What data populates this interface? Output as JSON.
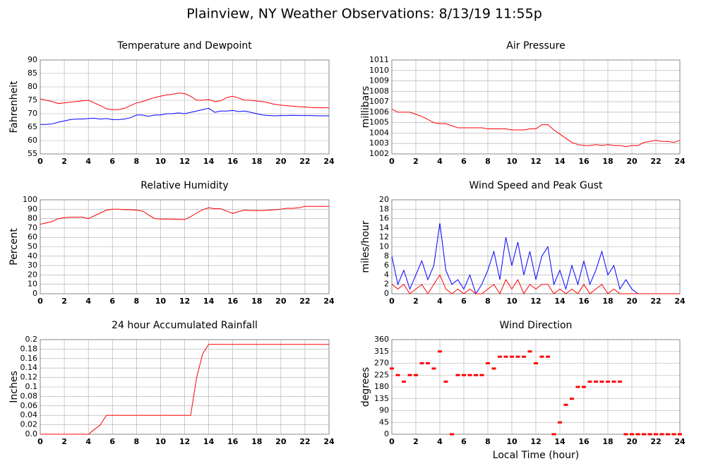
{
  "title": "Plainview, NY Weather Observations: 8/13/19 11:55p",
  "chart_data": [
    {
      "type": "line",
      "title": "Temperature and Dewpoint",
      "ylabel": "Fahrenheit",
      "x": [
        0,
        0.5,
        1,
        1.5,
        2,
        2.5,
        3,
        3.5,
        4,
        4.5,
        5,
        5.5,
        6,
        6.5,
        7,
        7.5,
        8,
        8.5,
        9,
        9.5,
        10,
        10.5,
        11,
        11.5,
        12,
        12.5,
        13,
        13.5,
        14,
        14.5,
        15,
        15.5,
        16,
        16.5,
        17,
        17.5,
        18,
        18.5,
        19,
        19.5,
        20,
        20.5,
        21,
        21.5,
        22,
        22.5,
        23,
        23.5,
        24
      ],
      "series": [
        {
          "color": "#ff0000",
          "values": [
            75.5,
            75,
            74.5,
            73.8,
            74,
            74.3,
            74.5,
            74.8,
            75,
            74,
            73,
            71.8,
            71.5,
            71.5,
            72,
            73,
            74,
            74.5,
            75.3,
            76,
            76.5,
            77,
            77.2,
            77.7,
            77.5,
            76.5,
            75,
            75,
            75.3,
            74.5,
            74.8,
            76,
            76.5,
            75.8,
            75,
            75,
            74.7,
            74.5,
            74,
            73.5,
            73.2,
            73,
            72.8,
            72.6,
            72.5,
            72.3,
            72.2,
            72.2,
            72.2
          ]
        },
        {
          "color": "#0000ff",
          "values": [
            66,
            66,
            66.2,
            66.8,
            67.3,
            67.8,
            68,
            68,
            68.2,
            68.3,
            68,
            68.2,
            67.8,
            67.8,
            68,
            68.5,
            69.5,
            69.5,
            69,
            69.5,
            69.5,
            70,
            70,
            70.3,
            70,
            70.5,
            71,
            71.5,
            72,
            70.5,
            71,
            71,
            71.2,
            70.8,
            71,
            70.5,
            70,
            69.5,
            69.3,
            69.2,
            69.3,
            69.3,
            69.4,
            69.3,
            69.3,
            69.3,
            69.2,
            69.2,
            69.2
          ]
        }
      ],
      "xlim": [
        0,
        24
      ],
      "xticks": [
        0,
        2,
        4,
        6,
        8,
        10,
        12,
        14,
        16,
        18,
        20,
        22,
        24
      ],
      "ylim": [
        55,
        90
      ],
      "yticks": [
        55,
        60,
        65,
        70,
        75,
        80,
        85,
        90
      ],
      "grid": true
    },
    {
      "type": "line",
      "title": "Air Pressure",
      "ylabel": "millibars",
      "x": [
        0,
        0.5,
        1,
        1.5,
        2,
        2.5,
        3,
        3.5,
        4,
        4.5,
        5,
        5.5,
        6,
        6.5,
        7,
        7.5,
        8,
        8.5,
        9,
        9.5,
        10,
        10.5,
        11,
        11.5,
        12,
        12.5,
        13,
        13.5,
        14,
        14.5,
        15,
        15.5,
        16,
        16.5,
        17,
        17.5,
        18,
        18.5,
        19,
        19.5,
        20,
        20.5,
        21,
        21.5,
        22,
        22.5,
        23,
        23.5,
        24
      ],
      "series": [
        {
          "color": "#ff0000",
          "values": [
            1006.3,
            1006,
            1006,
            1006,
            1005.8,
            1005.6,
            1005.3,
            1005,
            1004.9,
            1004.9,
            1004.7,
            1004.5,
            1004.5,
            1004.5,
            1004.5,
            1004.5,
            1004.4,
            1004.4,
            1004.4,
            1004.4,
            1004.3,
            1004.3,
            1004.3,
            1004.4,
            1004.4,
            1004.8,
            1004.8,
            1004.3,
            1003.9,
            1003.5,
            1003.1,
            1002.9,
            1002.8,
            1002.8,
            1002.9,
            1002.8,
            1002.9,
            1002.8,
            1002.8,
            1002.7,
            1002.8,
            1002.8,
            1003.1,
            1003.2,
            1003.3,
            1003.2,
            1003.2,
            1003.1,
            1003.3
          ]
        }
      ],
      "xlim": [
        0,
        24
      ],
      "xticks": [
        0,
        2,
        4,
        6,
        8,
        10,
        12,
        14,
        16,
        18,
        20,
        22,
        24
      ],
      "ylim": [
        1002,
        1011
      ],
      "yticks": [
        1002,
        1003,
        1004,
        1005,
        1006,
        1007,
        1008,
        1009,
        1010,
        1011
      ],
      "grid": true
    },
    {
      "type": "line",
      "title": "Relative Humidity",
      "ylabel": "Percent",
      "x": [
        0,
        0.5,
        1,
        1.5,
        2,
        2.5,
        3,
        3.5,
        4,
        4.5,
        5,
        5.5,
        6,
        6.5,
        7,
        7.5,
        8,
        8.5,
        9,
        9.5,
        10,
        10.5,
        11,
        11.5,
        12,
        12.5,
        13,
        13.5,
        14,
        14.5,
        15,
        15.5,
        16,
        16.5,
        17,
        17.5,
        18,
        18.5,
        19,
        19.5,
        20,
        20.5,
        21,
        21.5,
        22,
        22.5,
        23,
        23.5,
        24
      ],
      "series": [
        {
          "color": "#ff0000",
          "values": [
            74,
            75.5,
            77,
            80,
            81,
            81.5,
            81.5,
            81.5,
            80,
            83,
            86,
            89,
            90,
            90,
            89.5,
            89.5,
            89,
            88,
            84,
            80,
            79.5,
            79.5,
            79.5,
            79,
            79,
            82,
            86,
            89.5,
            91.5,
            90.5,
            90.5,
            88,
            85.5,
            87.5,
            89,
            88.5,
            88.5,
            88.5,
            89,
            89.5,
            90,
            91,
            91,
            91.5,
            93,
            93,
            93,
            93,
            93
          ]
        }
      ],
      "xlim": [
        0,
        24
      ],
      "xticks": [
        0,
        2,
        4,
        6,
        8,
        10,
        12,
        14,
        16,
        18,
        20,
        22,
        24
      ],
      "ylim": [
        0,
        100
      ],
      "yticks": [
        0,
        10,
        20,
        30,
        40,
        50,
        60,
        70,
        80,
        90,
        100
      ],
      "grid": true
    },
    {
      "type": "line",
      "title": "Wind Speed and Peak Gust",
      "ylabel": "miles/hour",
      "x": [
        0,
        0.5,
        1,
        1.5,
        2,
        2.5,
        3,
        3.5,
        4,
        4.5,
        5,
        5.5,
        6,
        6.5,
        7,
        7.5,
        8,
        8.5,
        9,
        9.5,
        10,
        10.5,
        11,
        11.5,
        12,
        12.5,
        13,
        13.5,
        14,
        14.5,
        15,
        15.5,
        16,
        16.5,
        17,
        17.5,
        18,
        18.5,
        19,
        19.5,
        20,
        20.5,
        21,
        21.5,
        22,
        22.5,
        23,
        23.5,
        24
      ],
      "series": [
        {
          "color": "#0000ff",
          "values": [
            8,
            2,
            5,
            1,
            4,
            7,
            3,
            6,
            15,
            5,
            2,
            3,
            1,
            4,
            0,
            2,
            5,
            9,
            3,
            12,
            6,
            11,
            4,
            9,
            3,
            8,
            10,
            2,
            5,
            1,
            6,
            2,
            7,
            2,
            5,
            9,
            4,
            6,
            1,
            3,
            1,
            0,
            0,
            0,
            0,
            0,
            0,
            0,
            0
          ]
        },
        {
          "color": "#ff0000",
          "values": [
            2,
            1,
            2,
            0,
            1,
            2,
            0,
            2,
            4,
            1,
            0,
            1,
            0,
            1,
            0,
            0,
            1,
            2,
            0,
            3,
            1,
            3,
            0,
            2,
            1,
            2,
            2,
            0,
            1,
            0,
            1,
            0,
            2,
            0,
            1,
            2,
            0,
            1,
            0,
            0,
            0,
            0,
            0,
            0,
            0,
            0,
            0,
            0,
            0
          ]
        }
      ],
      "xlim": [
        0,
        24
      ],
      "xticks": [
        0,
        2,
        4,
        6,
        8,
        10,
        12,
        14,
        16,
        18,
        20,
        22,
        24
      ],
      "ylim": [
        0,
        20
      ],
      "yticks": [
        0,
        2,
        4,
        6,
        8,
        10,
        12,
        14,
        16,
        18,
        20
      ],
      "grid": true
    },
    {
      "type": "line",
      "title": "24 hour Accumulated Rainfall",
      "ylabel": "Inches",
      "x": [
        0,
        0.5,
        1,
        1.5,
        2,
        2.5,
        3,
        3.5,
        4,
        4.5,
        5,
        5.5,
        6,
        6.5,
        7,
        7.5,
        8,
        8.5,
        9,
        9.5,
        10,
        10.5,
        11,
        11.5,
        12,
        12.5,
        13,
        13.5,
        14,
        14.5,
        15,
        15.5,
        16,
        16.5,
        17,
        17.5,
        18,
        18.5,
        19,
        19.5,
        20,
        20.5,
        21,
        21.5,
        22,
        22.5,
        23,
        23.5,
        24
      ],
      "series": [
        {
          "color": "#ff0000",
          "values": [
            0,
            0,
            0,
            0,
            0,
            0,
            0,
            0,
            0,
            0.01,
            0.02,
            0.04,
            0.04,
            0.04,
            0.04,
            0.04,
            0.04,
            0.04,
            0.04,
            0.04,
            0.04,
            0.04,
            0.04,
            0.04,
            0.04,
            0.04,
            0.12,
            0.17,
            0.19,
            0.19,
            0.19,
            0.19,
            0.19,
            0.19,
            0.19,
            0.19,
            0.19,
            0.19,
            0.19,
            0.19,
            0.19,
            0.19,
            0.19,
            0.19,
            0.19,
            0.19,
            0.19,
            0.19,
            0.19
          ]
        }
      ],
      "xlim": [
        0,
        24
      ],
      "xticks": [
        0,
        2,
        4,
        6,
        8,
        10,
        12,
        14,
        16,
        18,
        20,
        22,
        24
      ],
      "ylim": [
        0,
        0.2
      ],
      "yticks": [
        {
          "value": 0,
          "label": "0.0"
        },
        0.02,
        0.04,
        0.06,
        0.08,
        0.1,
        0.12,
        0.14,
        0.16,
        0.18,
        0.2
      ],
      "grid": true
    },
    {
      "type": "scatter",
      "title": "Wind Direction",
      "ylabel": "degrees",
      "xlabel": "Local Time (hour)",
      "x": [
        0,
        0.5,
        1,
        1.5,
        2,
        2.5,
        3,
        3.5,
        4,
        4.5,
        5,
        5.5,
        6,
        6.5,
        7,
        7.5,
        8,
        8.5,
        9,
        9.5,
        10,
        10.5,
        11,
        11.5,
        12,
        12.5,
        13,
        13.5,
        14,
        14.5,
        15,
        15.5,
        16,
        16.5,
        17,
        17.5,
        18,
        18.5,
        19,
        19.5,
        20,
        20.5,
        21,
        21.5,
        22,
        22.5,
        23,
        23.5,
        24
      ],
      "series": [
        {
          "color": "#ff0000",
          "values": [
            250,
            225,
            200,
            225,
            225,
            270,
            270,
            250,
            315,
            200,
            0,
            225,
            225,
            225,
            225,
            225,
            270,
            250,
            295,
            295,
            295,
            295,
            295,
            315,
            270,
            295,
            295,
            0,
            45,
            112,
            135,
            180,
            180,
            200,
            200,
            200,
            200,
            200,
            200,
            0,
            0,
            0,
            0,
            0,
            0,
            0,
            0,
            0,
            0
          ]
        }
      ],
      "xlim": [
        0,
        24
      ],
      "xticks": [
        0,
        2,
        4,
        6,
        8,
        10,
        12,
        14,
        16,
        18,
        20,
        22,
        24
      ],
      "ylim": [
        0,
        360
      ],
      "yticks": [
        0,
        45,
        90,
        135,
        180,
        225,
        270,
        315,
        360
      ],
      "grid": true
    }
  ]
}
